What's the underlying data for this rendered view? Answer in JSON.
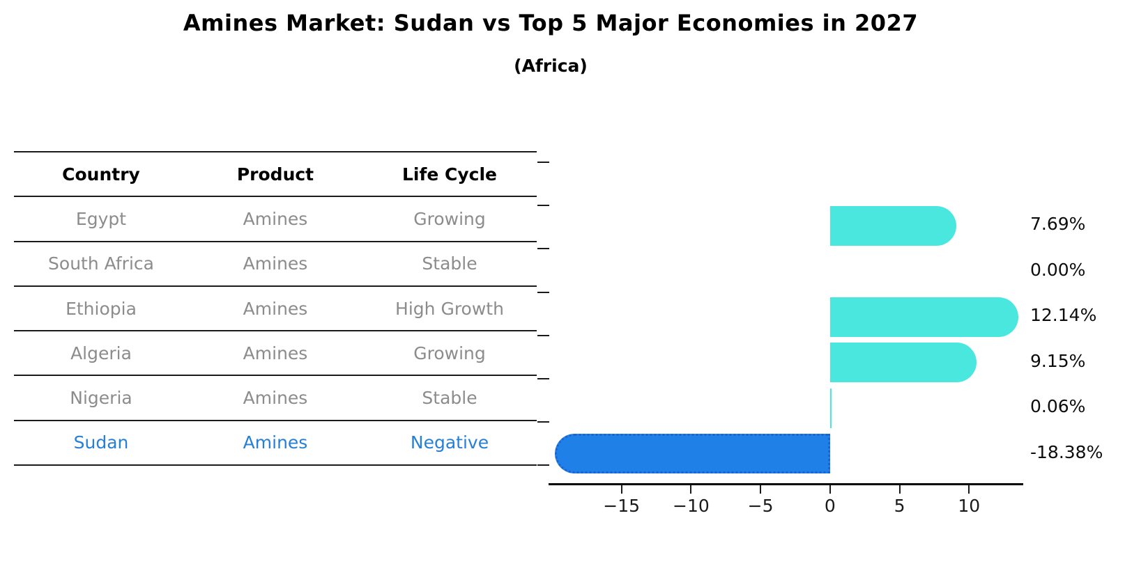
{
  "title": "Amines Market: Sudan vs Top 5 Major Economies in 2027",
  "subtitle": "(Africa)",
  "table": {
    "headers": [
      "Country",
      "Product",
      "Life Cycle"
    ],
    "rows": [
      {
        "country": "Egypt",
        "product": "Amines",
        "life_cycle": "Growing",
        "highlight": false
      },
      {
        "country": "South Africa",
        "product": "Amines",
        "life_cycle": "Stable",
        "highlight": false
      },
      {
        "country": "Ethiopia",
        "product": "Amines",
        "life_cycle": "High Growth",
        "highlight": false
      },
      {
        "country": "Algeria",
        "product": "Amines",
        "life_cycle": "Growing",
        "highlight": false
      },
      {
        "country": "Nigeria",
        "product": "Amines",
        "life_cycle": "Stable",
        "highlight": false
      },
      {
        "country": "Sudan",
        "product": "Amines",
        "life_cycle": "Negative",
        "highlight": true
      }
    ]
  },
  "chart_data": {
    "type": "bar",
    "orientation": "horizontal",
    "title": "Amines Market: Sudan vs Top 5 Major Economies in 2027",
    "subtitle": "(Africa)",
    "categories": [
      "Egypt",
      "South Africa",
      "Ethiopia",
      "Algeria",
      "Nigeria",
      "Sudan"
    ],
    "values": [
      7.69,
      0.0,
      12.14,
      9.15,
      0.06,
      -18.38
    ],
    "value_labels": [
      "7.69%",
      "0.00%",
      "12.14%",
      "9.15%",
      "0.06%",
      "-18.38%"
    ],
    "unit": "%",
    "x_ticks": [
      -15,
      -10,
      -5,
      0,
      5,
      10
    ],
    "x_tick_labels": [
      "−15",
      "−10",
      "−5",
      "0",
      "5",
      "10"
    ],
    "xlim": [
      -20.2,
      13.85
    ],
    "grid": false,
    "legend": "none",
    "colors": {
      "positive_bar": "#4ae7df",
      "negative_bar": "#1f80e8",
      "negative_bar_border": "#1a63d6",
      "highlight_text": "#2680d8",
      "table_text": "#8c8c8c",
      "axis": "#1a1a1a"
    }
  }
}
